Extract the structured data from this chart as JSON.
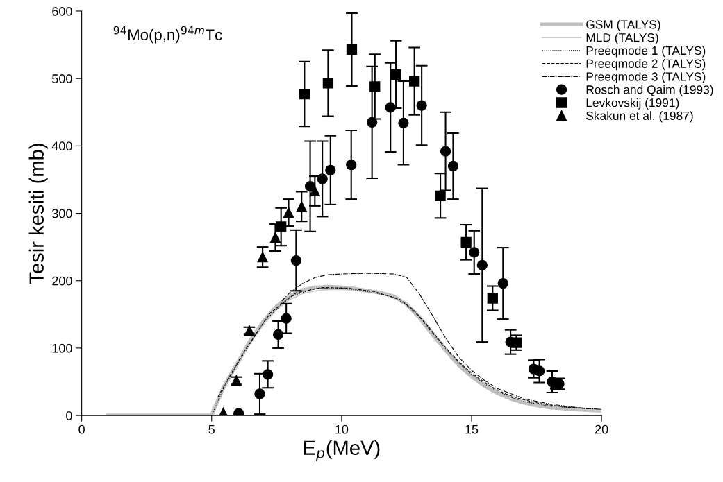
{
  "chart_data": {
    "type": "line",
    "xlabel": "E$_{p}$(MeV)",
    "ylabel": "Tesir kesiti (mb)",
    "annotations": [
      "$^{94}$Mo(p,n)$^{94m}$Tc"
    ],
    "xlim": [
      0,
      20
    ],
    "ylim": [
      0,
      600
    ],
    "xticks": [
      0,
      5,
      10,
      15,
      20
    ],
    "yticks": [
      0,
      100,
      200,
      300,
      400,
      500,
      600
    ],
    "grid": false,
    "legend": "top right",
    "series": [
      {
        "name": "GSM (TALYS)",
        "color": "#c0c0c0",
        "line_style": "solid",
        "marker": "none",
        "x": [
          1,
          5,
          5.1,
          5.5,
          6,
          6.5,
          7,
          7.5,
          8,
          8.5,
          9,
          9.5,
          10,
          10.5,
          11,
          11.5,
          12,
          12.5,
          13,
          13.5,
          14,
          14.5,
          15,
          15.5,
          16,
          16.5,
          17,
          17.5,
          18,
          19,
          20
        ],
        "values": [
          0,
          0,
          10,
          45,
          78,
          112,
          140,
          162,
          177,
          186,
          190,
          191,
          190,
          188,
          185,
          182,
          177,
          165,
          145,
          120,
          97,
          75,
          58,
          44,
          33,
          25,
          19,
          15,
          12,
          9,
          7
        ]
      },
      {
        "name": "MLD (TALYS)",
        "color": "#c8c8c8",
        "line_style": "solid",
        "marker": "none",
        "x": [
          1,
          5,
          5.1,
          5.5,
          6,
          6.5,
          7,
          7.5,
          8,
          8.5,
          9,
          9.5,
          10,
          10.5,
          11,
          11.5,
          12,
          12.5,
          13,
          13.5,
          14,
          14.5,
          15,
          15.5,
          16,
          16.5,
          17,
          17.5,
          18,
          19,
          20
        ],
        "values": [
          0,
          0,
          9,
          42,
          75,
          108,
          135,
          157,
          172,
          181,
          185,
          187,
          187,
          186,
          184,
          181,
          177,
          167,
          149,
          125,
          101,
          79,
          61,
          47,
          36,
          27,
          21,
          17,
          13,
          10,
          8
        ]
      },
      {
        "name": "Preeqmode 1 (TALYS)",
        "color": "#000000",
        "line_style": "dotted",
        "marker": "none",
        "x": [
          5,
          5.5,
          6,
          7,
          8,
          9,
          10,
          11,
          12,
          12.5,
          13,
          13.5,
          14,
          14.5,
          15,
          15.5,
          16,
          16.5,
          17,
          17.5,
          18,
          19,
          20
        ],
        "values": [
          0,
          44,
          77,
          139,
          176,
          189,
          189,
          184,
          176,
          164,
          146,
          122,
          99,
          78,
          61,
          47,
          36,
          27,
          21,
          17,
          14,
          11,
          9
        ]
      },
      {
        "name": "Preeqmode 2 (TALYS)",
        "color": "#000000",
        "line_style": "dashed",
        "marker": "none",
        "x": [
          5.25,
          5.75,
          6.25,
          7.25,
          8.25,
          9.25,
          10.25,
          11.25,
          12.25,
          12.75,
          13.25,
          13.75,
          14.25,
          14.75,
          15.25,
          15.75,
          16.25,
          16.75,
          17.25,
          17.75,
          18.5,
          19.5
        ],
        "values": [
          28,
          62,
          95,
          152,
          182,
          190,
          189,
          184,
          172,
          157,
          136,
          112,
          90,
          71,
          56,
          43,
          33,
          26,
          21,
          17,
          13,
          10
        ]
      },
      {
        "name": "Preeqmode 3 (TALYS)",
        "color": "#000000",
        "line_style": "dashdot",
        "marker": "none",
        "x": [
          7.7,
          8,
          8.5,
          9,
          9.5,
          10,
          11,
          12,
          12.5,
          13,
          13.5,
          14,
          14.5,
          15,
          15.5,
          16,
          17,
          18,
          19,
          20
        ],
        "values": [
          170,
          182,
          196,
          205,
          209,
          210,
          211,
          210,
          205,
          180,
          148,
          115,
          87,
          67,
          52,
          40,
          25,
          17,
          12,
          9
        ]
      },
      {
        "name": "Rosch and Qaim (1993)",
        "type": "scatter",
        "color": "#000000",
        "marker": "circle",
        "x": [
          6.04,
          6.85,
          7.16,
          7.56,
          7.87,
          8.25,
          8.79,
          9.26,
          9.57,
          10.37,
          11.17,
          11.88,
          12.38,
          13.08,
          14.0,
          14.29,
          15.1,
          15.41,
          16.21,
          16.5,
          17.39,
          17.61,
          18.1,
          18.37
        ],
        "values": [
          3,
          32,
          61,
          120,
          144,
          230,
          340,
          351,
          364,
          372,
          435,
          457,
          434,
          460,
          392,
          370,
          242,
          223,
          196,
          109,
          69,
          66,
          50,
          47
        ],
        "errors": [
          null,
          30,
          20,
          20,
          22,
          45,
          67,
          56,
          51,
          51,
          83,
          66,
          62,
          59,
          58,
          49,
          32,
          114,
          53,
          18,
          13,
          17,
          16,
          8
        ]
      },
      {
        "name": "Levkovskij (1991)",
        "type": "scatter",
        "color": "#000000",
        "marker": "square",
        "x": [
          7.67,
          8.57,
          9.48,
          10.39,
          11.28,
          12.09,
          12.8,
          13.8,
          14.79,
          15.81,
          16.72,
          18.24
        ],
        "values": [
          280,
          477,
          493,
          543,
          488,
          506,
          496,
          326,
          257,
          174,
          108,
          45
        ],
        "errors": [
          28,
          48,
          49,
          54,
          48,
          50,
          50,
          33,
          26,
          18,
          11,
          5
        ]
      },
      {
        "name": "Skakun et al. (1987)",
        "type": "scatter",
        "color": "#000000",
        "marker": "triangle",
        "x": [
          5.45,
          5.95,
          6.45,
          6.96,
          7.45,
          7.96,
          8.46,
          8.97
        ],
        "values": [
          4,
          52,
          126,
          235,
          264,
          301,
          310,
          333
        ],
        "errors": [
          null,
          5,
          5,
          15,
          20,
          20,
          22,
          22
        ]
      }
    ]
  }
}
